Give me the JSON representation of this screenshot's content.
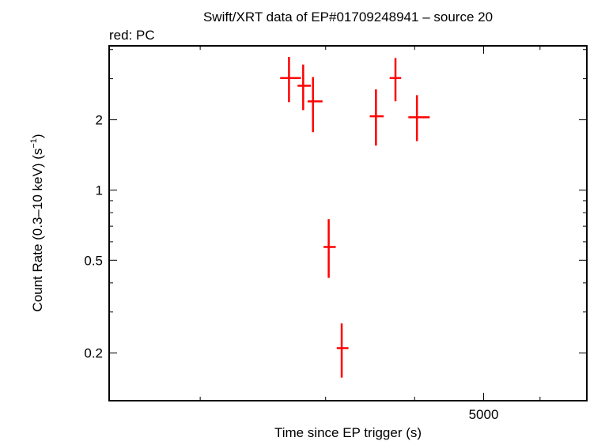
{
  "chart_data": {
    "type": "scatter",
    "title": "Swift/XRT data of EP#01709248941 – source 20",
    "subtitle": "red: PC",
    "xlabel": "Time since EP trigger (s)",
    "ylabel_main": "Count Rate (0.3–10 keV) (s",
    "ylabel_sup": "−1",
    "ylabel_close": ")",
    "x_scale": "log",
    "y_scale": "log",
    "xlim": [
      1490,
      6980
    ],
    "ylim": [
      0.125,
      4.15
    ],
    "x_ticks": [
      {
        "value": 5000,
        "label": "5000"
      }
    ],
    "x_minor_ticks": [
      2000,
      3000,
      4000,
      5000,
      6000
    ],
    "y_ticks": [
      {
        "value": 0.2,
        "label": "0.2"
      },
      {
        "value": 0.5,
        "label": "0.5"
      },
      {
        "value": 1,
        "label": "1"
      },
      {
        "value": 2,
        "label": "2"
      }
    ],
    "y_minor_ticks": [
      0.2,
      0.3,
      0.4,
      0.5,
      0.6,
      0.7,
      0.8,
      0.9,
      1,
      2,
      3,
      4
    ],
    "grid": false,
    "series": [
      {
        "color": "#ff0000",
        "points": [
          {
            "x": 2665,
            "xlo": 2590,
            "xhi": 2770,
            "y": 3.02,
            "ylo": 2.38,
            "yhi": 3.72
          },
          {
            "x": 2790,
            "xlo": 2740,
            "xhi": 2860,
            "y": 2.8,
            "ylo": 2.2,
            "yhi": 3.45
          },
          {
            "x": 2880,
            "xlo": 2830,
            "xhi": 2970,
            "y": 2.4,
            "ylo": 1.77,
            "yhi": 3.05
          },
          {
            "x": 3030,
            "xlo": 2980,
            "xhi": 3100,
            "y": 0.57,
            "ylo": 0.42,
            "yhi": 0.75
          },
          {
            "x": 3160,
            "xlo": 3110,
            "xhi": 3230,
            "y": 0.21,
            "ylo": 0.157,
            "yhi": 0.268
          },
          {
            "x": 3530,
            "xlo": 3460,
            "xhi": 3620,
            "y": 2.07,
            "ylo": 1.55,
            "yhi": 2.7
          },
          {
            "x": 3760,
            "xlo": 3690,
            "xhi": 3830,
            "y": 3.02,
            "ylo": 2.4,
            "yhi": 3.68
          },
          {
            "x": 4030,
            "xlo": 3920,
            "xhi": 4200,
            "y": 2.05,
            "ylo": 1.62,
            "yhi": 2.55
          }
        ]
      }
    ]
  }
}
